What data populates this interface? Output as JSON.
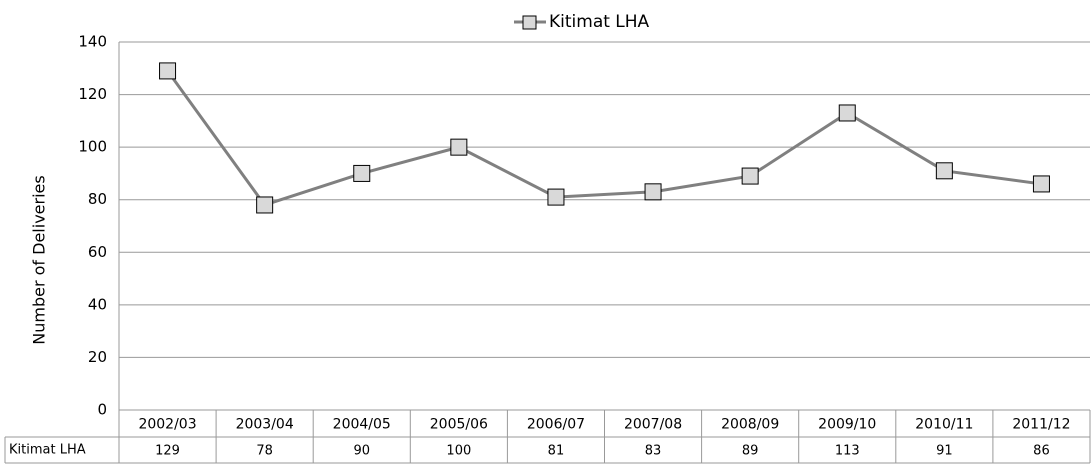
{
  "chart_data": {
    "type": "line",
    "y_label": "Number of Deliveries",
    "categories": [
      "2002/03",
      "2003/04",
      "2004/05",
      "2005/06",
      "2006/07",
      "2007/08",
      "2008/09",
      "2009/10",
      "2010/11",
      "2011/12"
    ],
    "series": [
      {
        "name": "Kitimat LHA",
        "color": "#808080",
        "marker_color": "#d9d9d9",
        "values": [
          129,
          78,
          90,
          100,
          81,
          83,
          89,
          113,
          91,
          86
        ]
      }
    ],
    "ylim": [
      0,
      140
    ],
    "yticks": [
      0,
      20,
      40,
      60,
      80,
      100,
      120,
      140
    ],
    "grid": true,
    "legend": "top",
    "data_table": true
  }
}
